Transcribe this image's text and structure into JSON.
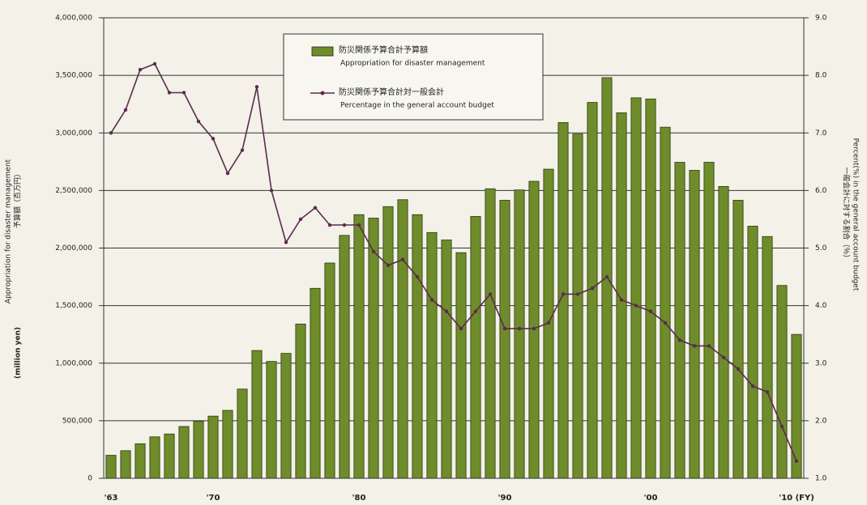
{
  "chart_data": {
    "type": "bar+line",
    "categories": [
      "'63",
      null,
      null,
      null,
      null,
      null,
      null,
      "'70",
      null,
      null,
      null,
      null,
      null,
      null,
      null,
      null,
      null,
      "'80",
      null,
      null,
      null,
      null,
      null,
      null,
      null,
      null,
      null,
      "'90",
      null,
      null,
      null,
      null,
      null,
      null,
      null,
      null,
      null,
      "'00",
      null,
      null,
      null,
      null,
      null,
      null,
      null,
      null,
      null,
      "'10 (FY)"
    ],
    "series": [
      {
        "name": "防災関係予算合計予算額",
        "subname": "Appropriation for disaster management",
        "type": "bar",
        "color": "#6e8c2a",
        "values": [
          200000,
          240000,
          300000,
          360000,
          385000,
          450000,
          495000,
          540000,
          590000,
          775000,
          1110000,
          1015000,
          1085000,
          1340000,
          1650000,
          1870000,
          2110000,
          2290000,
          2260000,
          2360000,
          2420000,
          2290000,
          2135000,
          2070000,
          1960000,
          2275000,
          2515000,
          2415000,
          2505000,
          2580000,
          2685000,
          3090000,
          2990000,
          3265000,
          3480000,
          3175000,
          3305000,
          3295000,
          3050000,
          2745000,
          2675000,
          2745000,
          2535000,
          2415000,
          2190000,
          2100000,
          1675000,
          1250000
        ]
      },
      {
        "name": "防災関係予算合計対一般会計",
        "subname": "Percentage in the general account budget",
        "type": "line",
        "axis": "y2",
        "color": "#5b2b4e",
        "values": [
          7.0,
          7.4,
          8.1,
          8.2,
          7.7,
          7.7,
          7.2,
          6.9,
          6.3,
          6.7,
          7.8,
          6.0,
          5.1,
          5.5,
          5.7,
          5.4,
          5.4,
          5.4,
          4.94,
          4.7,
          4.8,
          4.5,
          4.1,
          3.9,
          3.6,
          3.9,
          4.2,
          3.6,
          3.6,
          3.6,
          3.7,
          4.2,
          4.2,
          4.3,
          4.5,
          4.1,
          4.0,
          3.9,
          3.7,
          3.4,
          3.3,
          3.3,
          3.1,
          2.9,
          2.6,
          2.5,
          1.9,
          1.3
        ]
      }
    ],
    "ylabel": "(million yen)",
    "ylabel_ja": "予算額（百万円）",
    "ylabel_en": "Appropriation for disaster management",
    "y2label_ja": "一般会計に対する割合（％）",
    "y2label": "Percent(%) in the general account budget",
    "ylim": [
      0,
      4000000
    ],
    "yticks": [
      0,
      {
        "value": 500000,
        "label": "500,000"
      },
      {
        "value": 1000000,
        "label": "1,000,000"
      },
      {
        "value": 1500000,
        "label": "1,500,000"
      },
      {
        "value": 2000000,
        "label": "2,000,000"
      },
      {
        "value": 2500000,
        "label": "2,500,000"
      },
      {
        "value": 3000000,
        "label": "3,000,000"
      },
      {
        "value": 3500000,
        "label": "3,500,000"
      },
      {
        "value": 4000000,
        "label": "4,000,000"
      }
    ],
    "y2lim": [
      1,
      9
    ],
    "y2ticks": [
      {
        "value": 1,
        "label": "1.0"
      },
      {
        "value": 2,
        "label": "2.0"
      },
      {
        "value": 3,
        "label": "3.0"
      },
      {
        "value": 4,
        "label": "4.0"
      },
      {
        "value": 5,
        "label": "5.0"
      },
      {
        "value": 6,
        "label": "6.0"
      },
      {
        "value": 7,
        "label": "7.0"
      },
      {
        "value": 8,
        "label": "8.0"
      },
      {
        "value": 9,
        "label": "9.0"
      }
    ],
    "grid": true
  }
}
